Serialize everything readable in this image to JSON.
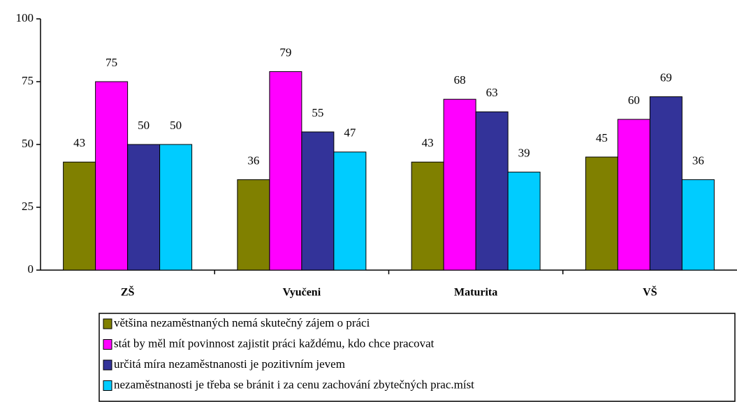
{
  "chart_data": {
    "type": "bar",
    "categories": [
      "ZŠ",
      "Vyučeni",
      "Maturita",
      "VŠ"
    ],
    "series": [
      {
        "name": "většina nezaměstnaných nemá skutečný zájem o práci",
        "color": "#808000",
        "values": [
          43,
          36,
          43,
          45
        ]
      },
      {
        "name": "stát by měl mít povinnost zajistit práci každému, kdo chce pracovat",
        "color": "#ff00ff",
        "values": [
          75,
          79,
          68,
          60
        ]
      },
      {
        "name": "určitá míra nezaměstnanosti je pozitivním jevem",
        "color": "#333399",
        "values": [
          50,
          55,
          63,
          69
        ]
      },
      {
        "name": "nezaměstnanosti je třeba se bránit i za cenu zachování zbytečných prac.míst",
        "color": "#00ccff",
        "values": [
          50,
          47,
          39,
          36
        ]
      }
    ],
    "ylim": [
      0,
      100
    ],
    "yticks": [
      0,
      25,
      50,
      75,
      100
    ],
    "grid": false,
    "legend": "bottom"
  }
}
